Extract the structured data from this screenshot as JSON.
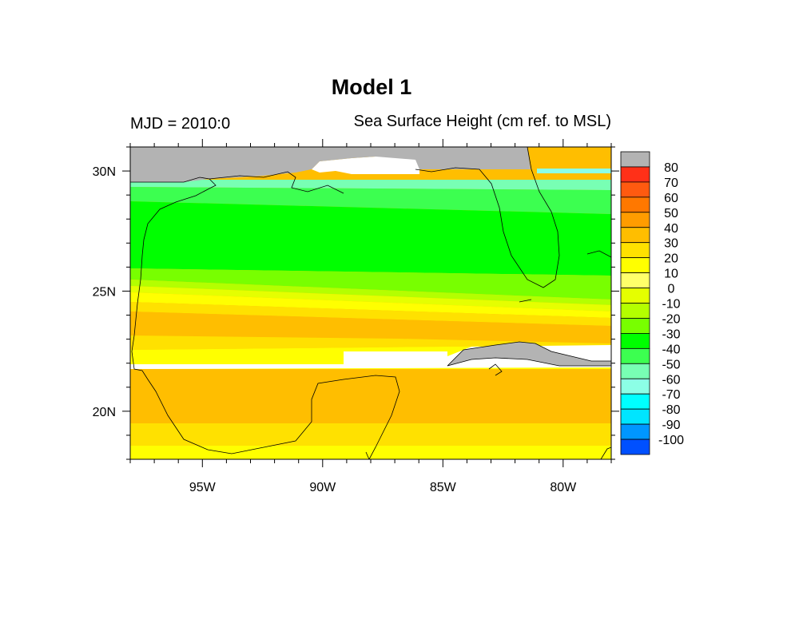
{
  "map": {
    "title": "Model 1",
    "left_string": "MJD = 2010:0",
    "right_string": "Sea Surface Height (cm ref. to MSL)",
    "lon_range": [
      -98,
      -78
    ],
    "lat_range": [
      18,
      31
    ],
    "lon_ticks": [
      {
        "value": -95,
        "label": "95W"
      },
      {
        "value": -90,
        "label": "90W"
      },
      {
        "value": -85,
        "label": "85W"
      },
      {
        "value": -80,
        "label": "80W"
      }
    ],
    "lat_ticks": [
      {
        "value": 20,
        "label": "20N"
      },
      {
        "value": 25,
        "label": "25N"
      },
      {
        "value": 30,
        "label": "30N"
      }
    ],
    "land_color": "#b3b3b3",
    "missing_color": "#ffffff"
  },
  "colorbar": {
    "labels": [
      "80",
      "70",
      "60",
      "50",
      "40",
      "30",
      "20",
      "10",
      "0",
      "-10",
      "-20",
      "-30",
      "-40",
      "-50",
      "-60",
      "-70",
      "-80",
      "-90",
      "-100"
    ],
    "colors_top_to_bottom": [
      "#b3b3b3",
      "#ff3018",
      "#ff5a10",
      "#ff7800",
      "#ff9c00",
      "#ffbe00",
      "#ffe100",
      "#ffff00",
      "#ffff6a",
      "#e5ff00",
      "#b4ff00",
      "#78ff00",
      "#00ff00",
      "#3cff50",
      "#78ffb4",
      "#8cffe6",
      "#00ffff",
      "#00e5ff",
      "#0096ff",
      "#0050ff"
    ]
  },
  "chart_data": {
    "type": "heatmap",
    "title": "Model 1",
    "subtitle": "Sea Surface Height (cm ref. to MSL)",
    "xlabel": "",
    "ylabel": "",
    "xlim": [
      -98,
      -78
    ],
    "ylim": [
      18,
      31
    ],
    "bands": [
      {
        "lat_from": 29.5,
        "lat_to": 30.0,
        "value": -65
      },
      {
        "lat_from": 29.0,
        "lat_to": 29.5,
        "value": -55
      },
      {
        "lat_from": 28.2,
        "lat_to": 29.0,
        "value": -45
      },
      {
        "lat_from": 26.0,
        "lat_to": 28.2,
        "value": -35
      },
      {
        "lat_from": 25.3,
        "lat_to": 26.0,
        "value": -25
      },
      {
        "lat_from": 24.8,
        "lat_to": 25.3,
        "value": -5
      },
      {
        "lat_from": 24.2,
        "lat_to": 24.8,
        "value": 15
      },
      {
        "lat_from": 23.2,
        "lat_to": 24.2,
        "value": 35
      },
      {
        "lat_from": 22.5,
        "lat_to": 23.2,
        "value": 35
      },
      {
        "lat_from": 21.8,
        "lat_to": 22.5,
        "value": 15
      },
      {
        "lat_from": 19.5,
        "lat_to": 21.8,
        "value": 35
      },
      {
        "lat_from": 18.5,
        "lat_to": 19.5,
        "value": 25
      },
      {
        "lat_from": 18.0,
        "lat_to": 18.5,
        "value": 15
      }
    ]
  }
}
